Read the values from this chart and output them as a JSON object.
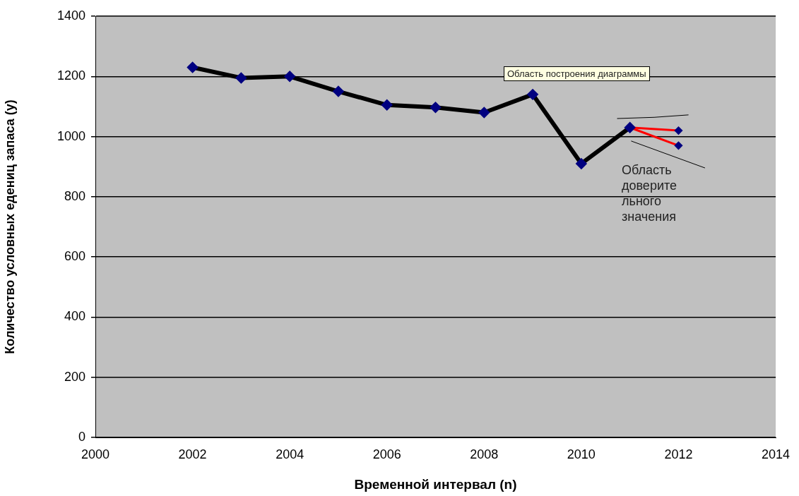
{
  "chart_data": {
    "type": "line",
    "xlabel": "Временной интервал (n)",
    "ylabel": "Количество условных едениц запаса (y)",
    "xlim": [
      2000,
      2014
    ],
    "xticks": [
      2000,
      2002,
      2004,
      2006,
      2008,
      2010,
      2012,
      2014
    ],
    "ylim": [
      0,
      1400
    ],
    "yticks": [
      0,
      200,
      400,
      600,
      800,
      1000,
      1200,
      1400
    ],
    "grid": "y",
    "legend": false,
    "marker": "diamond",
    "line_style": "solid",
    "series": [
      {
        "color": "#000000",
        "x": [
          2002,
          2003,
          2004,
          2005,
          2006,
          2007,
          2008,
          2009,
          2010,
          2011
        ],
        "values": [
          1230,
          1195,
          1200,
          1150,
          1105,
          1097,
          1080,
          1140,
          910,
          1030
        ]
      },
      {
        "color": "#ff0000",
        "x": [
          2011,
          2012
        ],
        "values": [
          1030,
          1020
        ]
      },
      {
        "color": "#ff0000",
        "x": [
          2011,
          2012
        ],
        "values": [
          1030,
          970
        ]
      },
      {
        "color": "#000000",
        "x": [
          2010.74,
          2011.5,
          2012.2
        ],
        "values": [
          1060,
          1064,
          1072
        ],
        "marker": "none"
      },
      {
        "color": "#000000",
        "x": [
          2011.03,
          2012.54
        ],
        "values": [
          985,
          896
        ],
        "marker": "none"
      }
    ],
    "annotations": [
      "Область построения диаграммы",
      "Область доверительного значения"
    ]
  }
}
